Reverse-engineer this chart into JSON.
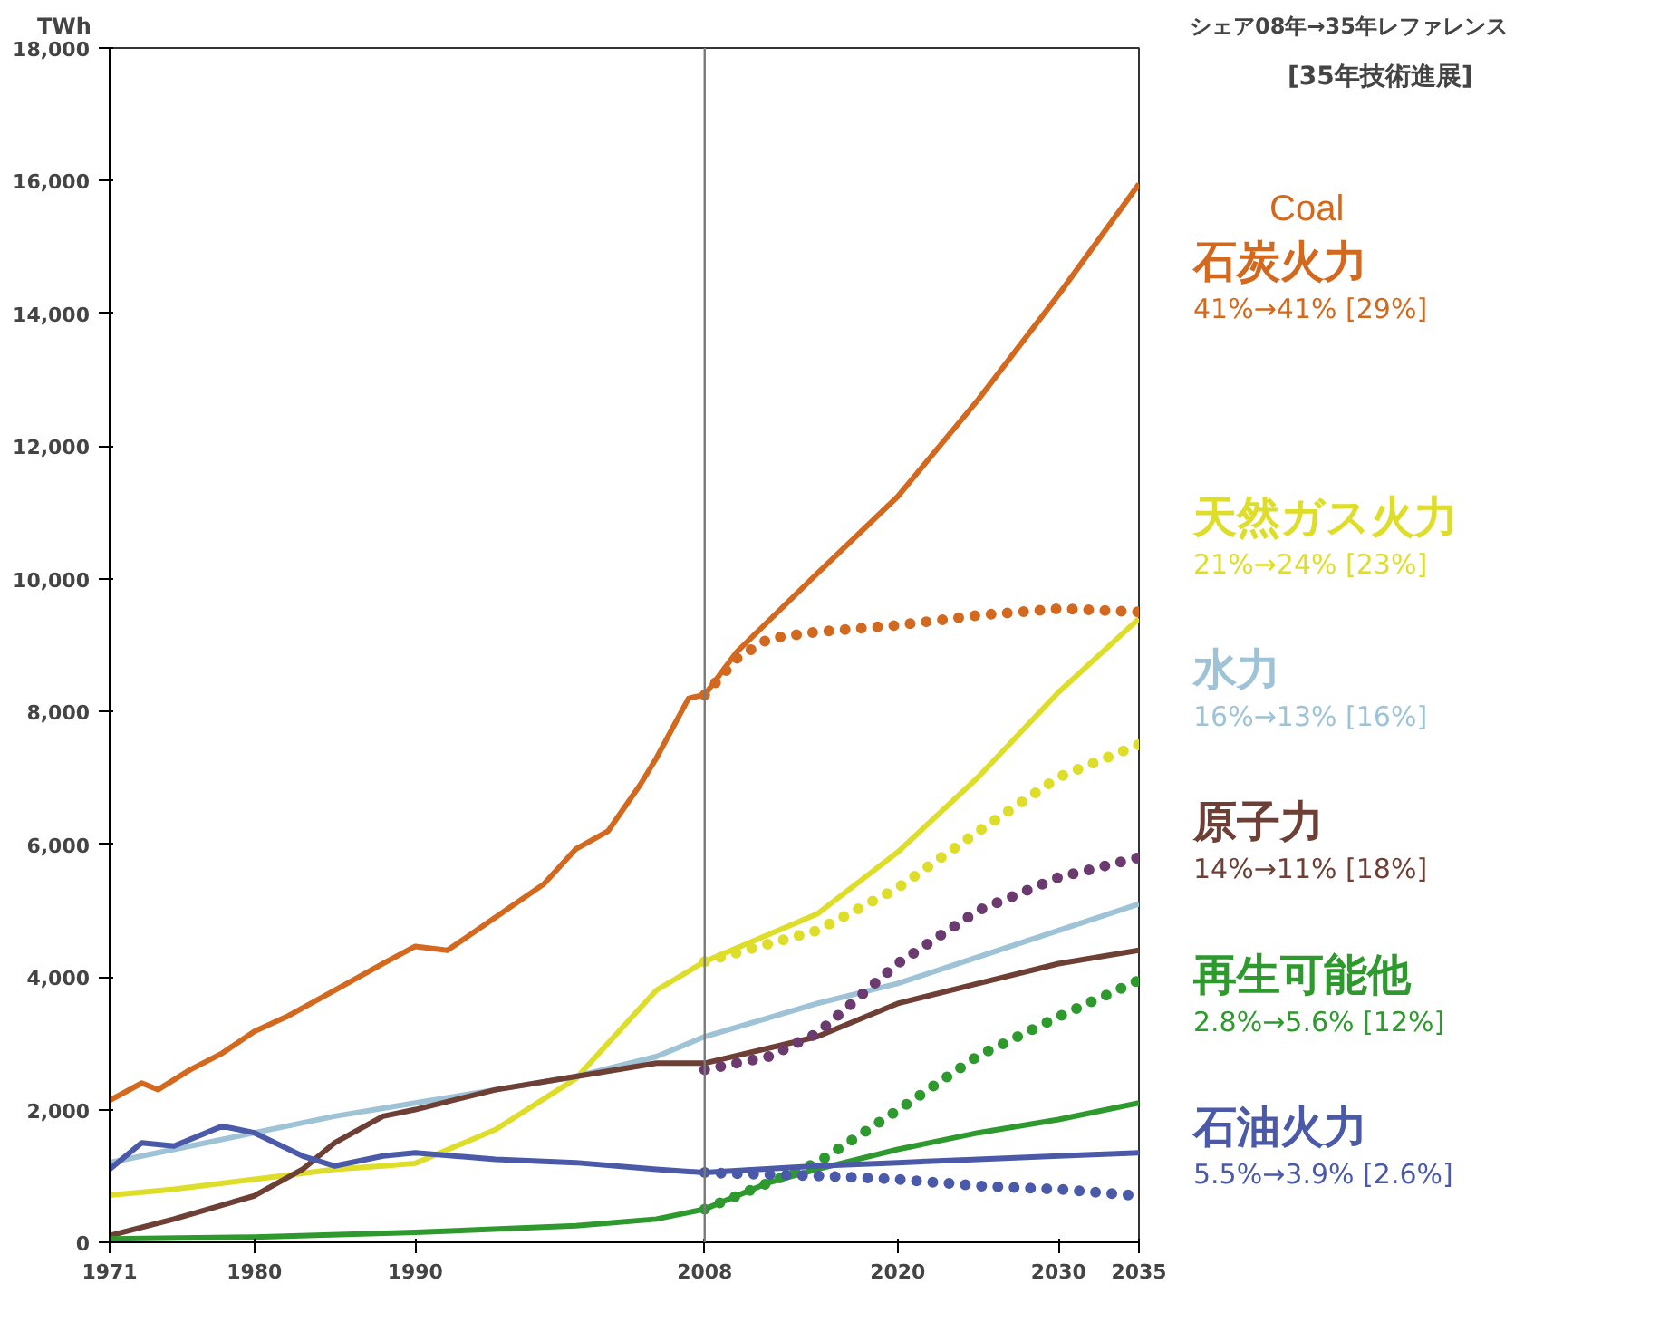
{
  "chart_data": {
    "type": "line",
    "title": "シェア08年→35年レファレンス",
    "subtitle": "[35年技術進展]",
    "ylabel": "TWh",
    "xlim": [
      1971,
      2035
    ],
    "ylim": [
      0,
      18000
    ],
    "xticks": [
      1971,
      1980,
      1990,
      2008,
      2020,
      2030,
      2035
    ],
    "yticks": [
      {
        "value": 0,
        "label": "0"
      },
      {
        "value": 2000,
        "label": "2,000"
      },
      {
        "value": 4000,
        "label": "4,000"
      },
      {
        "value": 6000,
        "label": "6,000"
      },
      {
        "value": 8000,
        "label": "8,000"
      },
      {
        "value": 10000,
        "label": "10,000"
      },
      {
        "value": 12000,
        "label": "12,000"
      },
      {
        "value": 14000,
        "label": "14,000"
      },
      {
        "value": 16000,
        "label": "16,000"
      },
      {
        "value": 18000,
        "label": "18,000"
      }
    ],
    "grid": false,
    "ref_lines": [
      {
        "axis": "x",
        "value": 2008,
        "color": "#7a7a7a",
        "line_style": "solid"
      }
    ],
    "series": [
      {
        "name": "石炭火力",
        "color": "#d2691e",
        "line_style": "solid",
        "x": [
          1971,
          1973,
          1974,
          1976,
          1978,
          1980,
          1982,
          1985,
          1988,
          1990,
          1992,
          1995,
          1998,
          2000,
          2002,
          2004,
          2005,
          2007,
          2008,
          2010,
          2015,
          2020,
          2025,
          2030,
          2035
        ],
        "values": [
          2140,
          2400,
          2300,
          2600,
          2850,
          3180,
          3400,
          3800,
          4200,
          4460,
          4400,
          4900,
          5400,
          5930,
          6200,
          6900,
          7300,
          8200,
          8250,
          8900,
          10080,
          11240,
          12700,
          14280,
          15950
        ]
      },
      {
        "color": "#d2691e",
        "line_style": "dotted",
        "x": [
          2008,
          2010,
          2012,
          2015,
          2020,
          2025,
          2030,
          2035
        ],
        "values": [
          8250,
          8800,
          9100,
          9200,
          9300,
          9450,
          9550,
          9500
        ]
      },
      {
        "name": "天然ガス火力",
        "color": "#dede2a",
        "line_style": "solid",
        "x": [
          1971,
          1975,
          1980,
          1985,
          1988,
          1990,
          1995,
          2000,
          2005,
          2008,
          2015,
          2020,
          2025,
          2030,
          2035
        ],
        "values": [
          710,
          800,
          950,
          1100,
          1150,
          1190,
          1700,
          2470,
          3800,
          4230,
          4950,
          5880,
          7010,
          8290,
          9400
        ]
      },
      {
        "color": "#dede2a",
        "line_style": "dotted",
        "x": [
          2008,
          2015,
          2020,
          2025,
          2030,
          2035
        ],
        "values": [
          4230,
          4700,
          5340,
          6190,
          7010,
          7500
        ]
      },
      {
        "name": "水力",
        "color": "#9ec3d6",
        "line_style": "solid",
        "x": [
          1971,
          1975,
          1980,
          1985,
          1990,
          1995,
          2000,
          2005,
          2008,
          2015,
          2020,
          2025,
          2030,
          2035
        ],
        "values": [
          1200,
          1400,
          1650,
          1900,
          2100,
          2300,
          2500,
          2800,
          3100,
          3600,
          3900,
          4300,
          4700,
          5100
        ]
      },
      {
        "name": "原子力",
        "color": "#6e4035",
        "line_style": "solid",
        "x": [
          1971,
          1975,
          1980,
          1983,
          1985,
          1988,
          1990,
          1995,
          2000,
          2005,
          2008,
          2015,
          2020,
          2025,
          2030,
          2035
        ],
        "values": [
          100,
          350,
          700,
          1100,
          1500,
          1900,
          2000,
          2300,
          2500,
          2700,
          2700,
          3100,
          3600,
          3900,
          4200,
          4400
        ]
      },
      {
        "color": "#6b3a6e",
        "line_style": "dotted",
        "x": [
          2008,
          2012,
          2015,
          2020,
          2025,
          2030,
          2035
        ],
        "values": [
          2600,
          2800,
          3150,
          4200,
          5000,
          5500,
          5800
        ]
      },
      {
        "name": "再生可能他",
        "color": "#2e9a2e",
        "line_style": "solid",
        "x": [
          1971,
          1980,
          1990,
          2000,
          2005,
          2008,
          2012,
          2015,
          2020,
          2025,
          2030,
          2035
        ],
        "values": [
          50,
          80,
          150,
          250,
          350,
          500,
          900,
          1100,
          1400,
          1650,
          1850,
          2100
        ]
      },
      {
        "color": "#2e9a2e",
        "line_style": "dotted",
        "x": [
          2008,
          2012,
          2015,
          2020,
          2025,
          2030,
          2035
        ],
        "values": [
          500,
          900,
          1200,
          1990,
          2810,
          3400,
          3950
        ]
      },
      {
        "name": "石油火力",
        "color": "#4a5aa8",
        "line_style": "solid",
        "x": [
          1971,
          1973,
          1975,
          1978,
          1980,
          1983,
          1985,
          1988,
          1990,
          1995,
          2000,
          2005,
          2008,
          2015,
          2020,
          2025,
          2030,
          2035
        ],
        "values": [
          1100,
          1500,
          1450,
          1750,
          1650,
          1300,
          1150,
          1300,
          1350,
          1250,
          1200,
          1100,
          1050,
          1150,
          1200,
          1250,
          1300,
          1350
        ]
      },
      {
        "color": "#4a5aa8",
        "line_style": "dotted",
        "x": [
          2008,
          2015,
          2020,
          2025,
          2030,
          2035
        ],
        "values": [
          1050,
          1000,
          950,
          850,
          800,
          700
        ]
      }
    ],
    "annotations": [
      "Coal",
      "41%→41% [29%]",
      "21%→24% [23%]",
      "16%→13% [16%]",
      "14%→11% [18%]",
      "2.8%→5.6% [12%]",
      "5.5%→3.9% [2.6%]"
    ]
  }
}
